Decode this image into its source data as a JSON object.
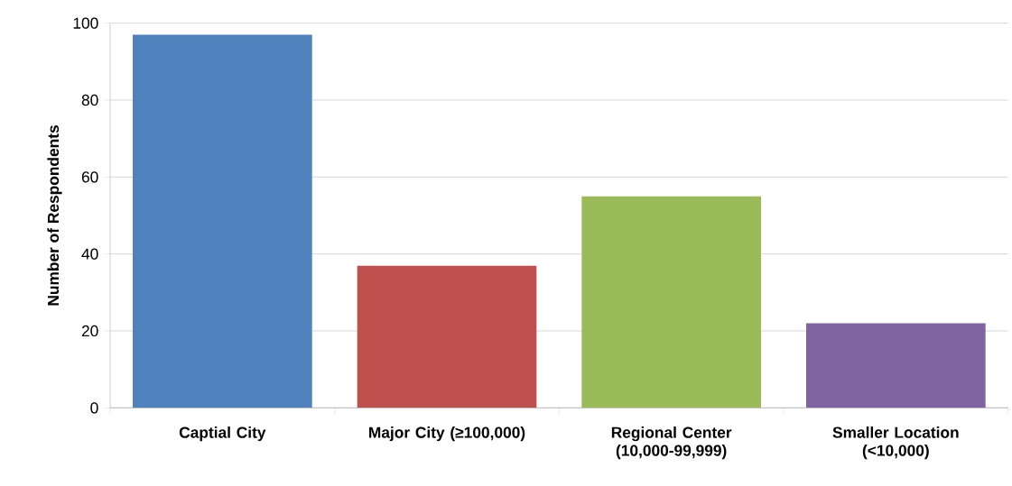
{
  "chart_data": {
    "type": "bar",
    "ylabel": "Number of Respondents",
    "categories": [
      "Captial City",
      "Major City (≥100,000)",
      "Regional Center (10,000-99,999)",
      "Smaller Location (<10,000)"
    ],
    "values": [
      97,
      37,
      55,
      22
    ],
    "colors": [
      "#4f81bd",
      "#c0504d",
      "#9bbb59",
      "#8064a2"
    ],
    "ylim": [
      0,
      100
    ],
    "yticks": [
      0,
      20,
      40,
      60,
      80,
      100
    ],
    "grid": "y"
  }
}
